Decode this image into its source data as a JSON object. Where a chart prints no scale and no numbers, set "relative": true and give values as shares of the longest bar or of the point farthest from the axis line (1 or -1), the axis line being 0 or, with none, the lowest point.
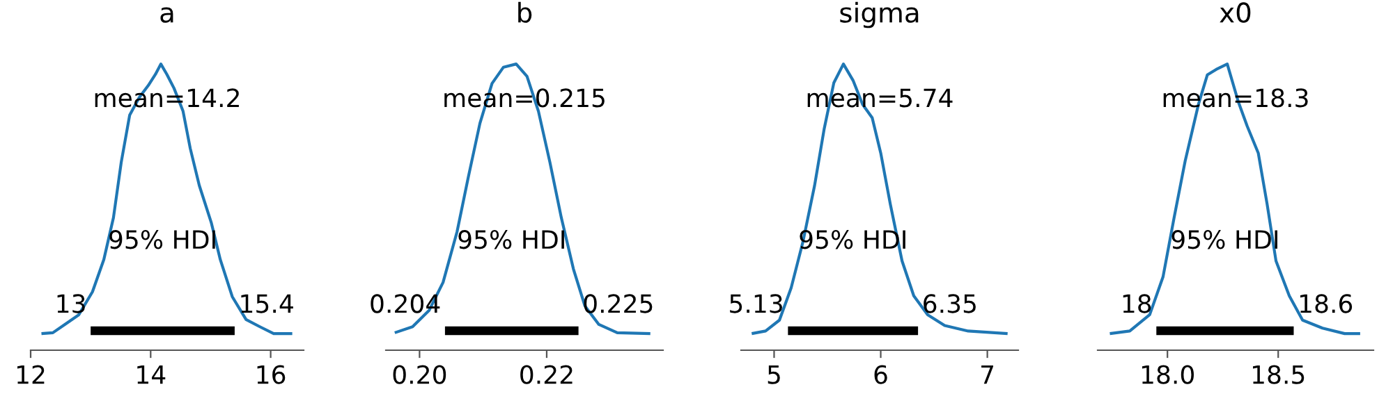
{
  "chart_data": [
    {
      "type": "line",
      "title": "a",
      "relative": true,
      "tick_labels": "x",
      "xlim": [
        12.0,
        16.55
      ],
      "xticks": [
        12,
        14,
        16
      ],
      "series": [
        {
          "color": "#1f77b4",
          "x": [
            12.18,
            12.37,
            12.57,
            12.8,
            13.03,
            13.22,
            13.38,
            13.51,
            13.65,
            13.81,
            13.96,
            14.08,
            14.17,
            14.27,
            14.39,
            14.54,
            14.66,
            14.81,
            15.01,
            15.16,
            15.36,
            15.59,
            15.82,
            16.05,
            16.36
          ],
          "values": [
            0.058,
            0.061,
            0.09,
            0.123,
            0.204,
            0.317,
            0.463,
            0.657,
            0.821,
            0.883,
            0.925,
            0.964,
            1,
            0.964,
            0.915,
            0.835,
            0.705,
            0.576,
            0.446,
            0.317,
            0.187,
            0.107,
            0.082,
            0.058,
            0.058
          ]
        },
        {
          "color": "#000000",
          "x": [
            13,
            15.4
          ],
          "values": [
            0.068,
            0.068
          ]
        }
      ],
      "annotations": [
        "mean=14.2",
        "95% HDI",
        "13",
        "15.4"
      ]
    },
    {
      "type": "line",
      "title": "b",
      "relative": true,
      "tick_labels": "x",
      "xlim": [
        0.1947,
        0.2383
      ],
      "xticks": [
        {
          "value": 0.2,
          "label": "0.20"
        },
        {
          "value": 0.22,
          "label": "0.22"
        }
      ],
      "series": [
        {
          "color": "#1f77b4",
          "x": [
            0.1961,
            0.1989,
            0.2015,
            0.2037,
            0.2059,
            0.2077,
            0.2095,
            0.2114,
            0.2132,
            0.2152,
            0.2169,
            0.2187,
            0.2205,
            0.2223,
            0.2242,
            0.226,
            0.2282,
            0.2311,
            0.2363
          ],
          "values": [
            0.061,
            0.082,
            0.139,
            0.237,
            0.414,
            0.608,
            0.793,
            0.932,
            0.989,
            1,
            0.957,
            0.835,
            0.657,
            0.463,
            0.284,
            0.155,
            0.09,
            0.061,
            0.058
          ]
        },
        {
          "color": "#000000",
          "x": [
            0.204,
            0.225
          ],
          "values": [
            0.068,
            0.068
          ]
        }
      ],
      "annotations": [
        "mean=0.215",
        "95% HDI",
        "0.204",
        "0.225"
      ]
    },
    {
      "type": "line",
      "title": "sigma",
      "relative": true,
      "tick_labels": "x",
      "xlim": [
        4.69,
        7.29
      ],
      "xticks": [
        5,
        6,
        7
      ],
      "series": [
        {
          "color": "#1f77b4",
          "x": [
            4.79,
            4.92,
            5.05,
            5.16,
            5.27,
            5.38,
            5.47,
            5.56,
            5.65,
            5.74,
            5.83,
            5.92,
            6.0,
            6.09,
            6.2,
            6.31,
            6.44,
            6.6,
            6.82,
            7.19
          ],
          "values": [
            0.058,
            0.067,
            0.105,
            0.218,
            0.378,
            0.576,
            0.774,
            0.934,
            1,
            0.943,
            0.859,
            0.812,
            0.689,
            0.51,
            0.312,
            0.19,
            0.124,
            0.086,
            0.067,
            0.058
          ]
        },
        {
          "color": "#000000",
          "x": [
            5.13,
            6.35
          ],
          "values": [
            0.068,
            0.068
          ]
        }
      ],
      "annotations": [
        "mean=5.74",
        "95% HDI",
        "5.13",
        "6.35"
      ]
    },
    {
      "type": "line",
      "title": "x0",
      "relative": true,
      "tick_labels": "x",
      "xlim": [
        17.685,
        18.93
      ],
      "xticks": [
        {
          "value": 18,
          "label": "18.0"
        },
        {
          "value": 18.5,
          "label": "18.5"
        }
      ],
      "series": [
        {
          "color": "#1f77b4",
          "x": [
            17.74,
            17.83,
            17.92,
            17.98,
            18.03,
            18.08,
            18.14,
            18.18,
            18.22,
            18.27,
            18.32,
            18.36,
            18.41,
            18.45,
            18.49,
            18.55,
            18.61,
            18.7,
            18.8,
            18.87
          ],
          "values": [
            0.058,
            0.067,
            0.124,
            0.256,
            0.463,
            0.661,
            0.859,
            0.962,
            0.981,
            1,
            0.868,
            0.783,
            0.689,
            0.51,
            0.312,
            0.19,
            0.105,
            0.077,
            0.058,
            0.058
          ]
        },
        {
          "color": "#000000",
          "x": [
            17.95,
            18.57
          ],
          "values": [
            0.068,
            0.068
          ]
        }
      ],
      "annotations": [
        "mean=18.3",
        "95% HDI",
        "18",
        "18.6"
      ]
    }
  ]
}
